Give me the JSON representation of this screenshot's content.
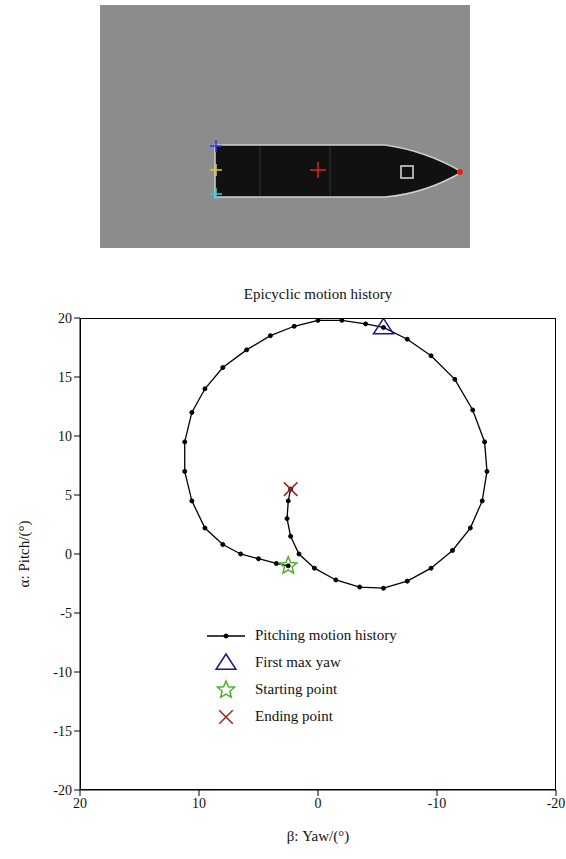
{
  "chart_data": {
    "type": "scatter",
    "title": "Epicyclic motion history",
    "x_label": "β: Yaw/(°)",
    "y_label": "α: Pitch/(°)",
    "xlim": [
      20,
      -20
    ],
    "xticks": [
      20,
      10,
      0,
      -10,
      -20
    ],
    "ylim": [
      -20,
      20
    ],
    "yticks": [
      -20,
      -15,
      -10,
      -5,
      0,
      5,
      10,
      15,
      20
    ],
    "grid": false,
    "legend": "bottom",
    "series": [
      {
        "name": "Pitching motion history",
        "type": "line",
        "color": "#000000",
        "marker": "circle",
        "line_style": "solid",
        "x": [
          2.5,
          3.5,
          5,
          6.5,
          8,
          9.5,
          10.6,
          11.2,
          11.2,
          10.6,
          9.5,
          8,
          6,
          4,
          2,
          0,
          -2,
          -4,
          -5.5,
          -7.5,
          -9.5,
          -11.5,
          -13,
          -14,
          -14.2,
          -13.8,
          -12.8,
          -11.3,
          -9.5,
          -7.5,
          -5.5,
          -3.5,
          -1.5,
          0.3,
          1.6,
          2.3,
          2.6,
          2.5,
          2.3
        ],
        "y": [
          -1,
          -0.8,
          -0.4,
          0,
          0.8,
          2.2,
          4.5,
          7,
          9.5,
          12,
          14,
          15.8,
          17.3,
          18.5,
          19.3,
          19.8,
          19.8,
          19.5,
          19.2,
          18.2,
          16.8,
          14.8,
          12.2,
          9.5,
          7,
          4.5,
          2.2,
          0.3,
          -1.2,
          -2.3,
          -2.9,
          -2.8,
          -2.2,
          -1.2,
          0,
          1.5,
          3,
          4.5,
          5.5
        ]
      },
      {
        "name": "First max yaw",
        "type": "scatter",
        "color": "#1a1a8c",
        "marker": "triangle",
        "x": [
          -5.5
        ],
        "y": [
          19.2
        ]
      },
      {
        "name": "Starting point",
        "type": "scatter",
        "color": "#4caf2a",
        "marker": "star",
        "x": [
          2.5
        ],
        "y": [
          -1
        ]
      },
      {
        "name": "Ending point",
        "type": "scatter",
        "color": "#a02020",
        "marker": "cross",
        "x": [
          2.3
        ],
        "y": [
          5.5
        ]
      }
    ]
  }
}
